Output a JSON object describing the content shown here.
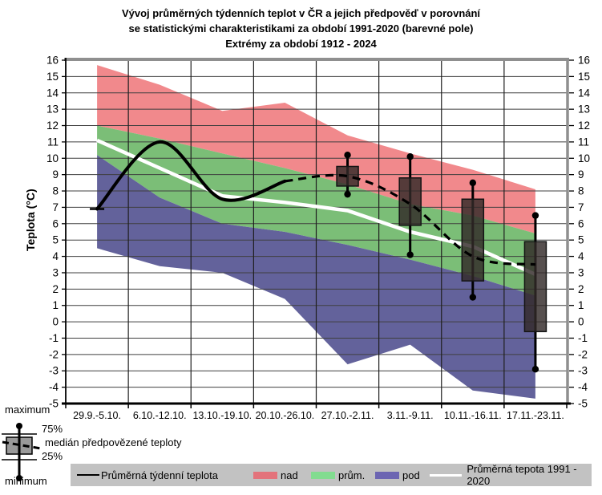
{
  "title": {
    "line1": "Vývoj průměrných týdenních teplot v ČR a jejich předpověď v porovnání",
    "line2": "se statistickými charakteristikami za období 1991-2020 (barevné pole)",
    "line3": "Extrémy za období 1912 - 2024"
  },
  "y_axis": {
    "label": "Teplota (°C)",
    "min": -5,
    "max": 16,
    "step": 1
  },
  "chart_data": {
    "type": "combo",
    "subtypes": [
      "area-bands",
      "line",
      "boxplot"
    ],
    "categories": [
      "29.9.-5.10.",
      "6.10.-12.10.",
      "13.10.-19.10.",
      "20.10.-26.10.",
      "27.10.-2.11.",
      "3.11.-9.11.",
      "10.11.-16.11.",
      "17.11.-23.11."
    ],
    "ylim": [
      -5,
      16
    ],
    "grid": true,
    "bands": {
      "extreme_max_top": [
        15.7,
        14.5,
        12.9,
        13.4,
        11.4,
        10.3,
        9.3,
        8.1
      ],
      "nad_prum_boundary": [
        12.0,
        11.2,
        10.3,
        9.4,
        8.4,
        7.2,
        6.5,
        5.4
      ],
      "prum_pod_boundary": [
        10.2,
        7.6,
        6.0,
        5.5,
        4.7,
        3.8,
        2.8,
        1.6
      ],
      "extreme_min_bottom": [
        4.5,
        3.4,
        3.0,
        1.4,
        -2.6,
        -1.4,
        -4.2,
        -4.7
      ]
    },
    "normal_1991_2020": [
      11.1,
      9.4,
      7.7,
      7.3,
      6.8,
      5.5,
      4.6,
      2.9
    ],
    "observed_weekly_mean": [
      6.9,
      11.0,
      7.5,
      8.6,
      null,
      null,
      null,
      null
    ],
    "forecast_median": [
      null,
      null,
      null,
      8.6,
      8.9,
      7.2,
      4.0,
      3.5
    ],
    "forecast_boxes": [
      {
        "category": "27.10.-2.11.",
        "min": 7.8,
        "q25": 8.3,
        "median": 8.9,
        "q75": 9.5,
        "max": 10.2
      },
      {
        "category": "3.11.-9.11.",
        "min": 4.1,
        "q25": 5.9,
        "median": 7.2,
        "q75": 8.8,
        "max": 10.1
      },
      {
        "category": "10.11.-16.11.",
        "min": 1.5,
        "q25": 2.5,
        "median": 4.0,
        "q75": 7.5,
        "max": 8.5
      },
      {
        "category": "17.11.-23.11.",
        "min": -2.9,
        "q25": -0.6,
        "median": 3.5,
        "q75": 4.9,
        "max": 6.5
      }
    ]
  },
  "boxplot_legend": {
    "maximum": "maximum",
    "p75": "75%",
    "median_label": "medián předpovězené teploty",
    "p25": "25%",
    "minimum": "minimum"
  },
  "legend": {
    "avg_weekly": "Průměrná týdenní teplota",
    "nad": "nad",
    "prum": "prům.",
    "pod": "pod",
    "normal_label": "Průměrná tepota 1991 - 2020"
  },
  "colors": {
    "band_nad": "#F1898C",
    "band_prum": "#7BBE77",
    "band_pod": "#63629B",
    "legend_nad": "#E3737B",
    "legend_prum": "#82DC90",
    "legend_pod": "#6C65B2",
    "legend_bar_bg": "#C2C2C2",
    "normal_line": "#FFFFFF",
    "observed_line": "#000000",
    "box_fill": "rgba(50,42,40,0.82)",
    "box_stroke": "#141414",
    "grid_h": "#3F3F3F",
    "grid_v": "#1F1F1F",
    "border_gray": "#8F8F8F"
  }
}
